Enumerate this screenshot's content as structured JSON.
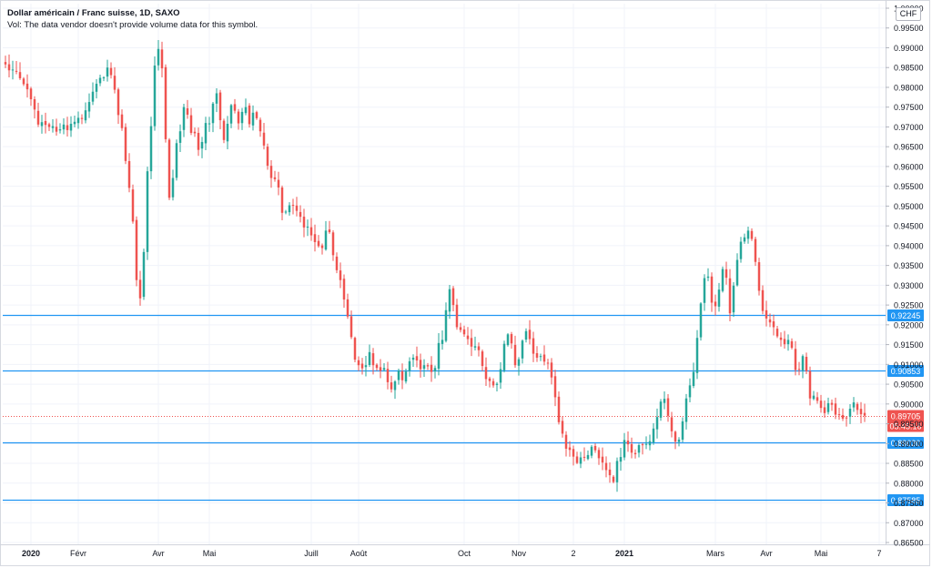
{
  "header": {
    "title": "Dollar américain / Franc suisse, 1D, SAXO",
    "volume_note": "Vol: The data vendor doesn't provide volume data for this symbol.",
    "currency_button": "CHF"
  },
  "colors": {
    "up": "#26a69a",
    "down": "#ef5350",
    "level_line": "#2196f3",
    "price_label": "#ef5350",
    "grid": "#f0f3fa",
    "axis_text": "#131722"
  },
  "last_price": {
    "price": "0.89705",
    "countdown": "05:45:16",
    "value": 0.89705
  },
  "levels": [
    {
      "value": 0.92245,
      "label": "0.92245"
    },
    {
      "value": 0.90853,
      "label": "0.90853"
    },
    {
      "value": 0.8903,
      "label": "0.89030"
    },
    {
      "value": 0.87585,
      "label": "0.87585"
    }
  ],
  "chart_data": {
    "type": "candlestick",
    "title": "Dollar américain / Franc suisse, 1D, SAXO",
    "y_ticks": [
      "1.00000",
      "0.99500",
      "0.99000",
      "0.98500",
      "0.98000",
      "0.97500",
      "0.97000",
      "0.96500",
      "0.96000",
      "0.95500",
      "0.95000",
      "0.94500",
      "0.94000",
      "0.93500",
      "0.93000",
      "0.92500",
      "0.92000",
      "0.91500",
      "0.91000",
      "0.90500",
      "0.90000",
      "0.89500",
      "0.89000",
      "0.88500",
      "0.88000",
      "0.87500",
      "0.87000",
      "0.86500"
    ],
    "ylim": [
      0.865,
      1.0
    ],
    "x_ticks": [
      {
        "label": "2020",
        "bold": true,
        "index": 7
      },
      {
        "label": "Févr",
        "index": 20
      },
      {
        "label": "Avr",
        "index": 42
      },
      {
        "label": "Mai",
        "index": 56
      },
      {
        "label": "Juill",
        "index": 84
      },
      {
        "label": "Août",
        "index": 97
      },
      {
        "label": "Oct",
        "index": 126
      },
      {
        "label": "Nov",
        "index": 141
      },
      {
        "label": "2",
        "index": 156
      },
      {
        "label": "2021",
        "bold": true,
        "index": 170
      },
      {
        "label": "Mars",
        "index": 195
      },
      {
        "label": "Avr",
        "index": 209
      },
      {
        "label": "Mai",
        "index": 224
      },
      {
        "label": "7",
        "index": 240
      }
    ],
    "closes": [
      0.9858,
      0.9843,
      0.9845,
      0.9841,
      0.9823,
      0.9808,
      0.9795,
      0.977,
      0.9744,
      0.9706,
      0.9712,
      0.9705,
      0.97,
      0.9702,
      0.9688,
      0.9694,
      0.9706,
      0.9692,
      0.9708,
      0.9713,
      0.9723,
      0.972,
      0.9742,
      0.9763,
      0.9789,
      0.9809,
      0.9824,
      0.9825,
      0.985,
      0.9831,
      0.9794,
      0.973,
      0.9697,
      0.9614,
      0.9546,
      0.9461,
      0.9313,
      0.9267,
      0.9384,
      0.9588,
      0.9702,
      0.9855,
      0.9897,
      0.9848,
      0.9669,
      0.9521,
      0.9571,
      0.9659,
      0.9689,
      0.975,
      0.9731,
      0.9685,
      0.9684,
      0.9642,
      0.9662,
      0.971,
      0.9709,
      0.9759,
      0.9785,
      0.9717,
      0.9667,
      0.9708,
      0.9755,
      0.9741,
      0.9709,
      0.9738,
      0.975,
      0.9707,
      0.9736,
      0.9722,
      0.9689,
      0.9653,
      0.9602,
      0.9571,
      0.9568,
      0.9547,
      0.9483,
      0.9486,
      0.9502,
      0.9501,
      0.9488,
      0.9473,
      0.9446,
      0.9448,
      0.9426,
      0.9409,
      0.9399,
      0.9394,
      0.9438,
      0.9434,
      0.9376,
      0.9338,
      0.9313,
      0.9264,
      0.9221,
      0.9169,
      0.9112,
      0.9098,
      0.909,
      0.9098,
      0.9131,
      0.9098,
      0.9091,
      0.9084,
      0.9091,
      0.9055,
      0.9037,
      0.9057,
      0.9084,
      0.906,
      0.9082,
      0.9108,
      0.9117,
      0.911,
      0.9088,
      0.9098,
      0.9095,
      0.9081,
      0.9091,
      0.9154,
      0.9162,
      0.9237,
      0.929,
      0.925,
      0.9194,
      0.9187,
      0.9176,
      0.9164,
      0.9145,
      0.9146,
      0.9136,
      0.9096,
      0.9063,
      0.9058,
      0.9047,
      0.9051,
      0.9088,
      0.9152,
      0.9176,
      0.9153,
      0.9098,
      0.9113,
      0.916,
      0.9184,
      0.9164,
      0.9127,
      0.9117,
      0.9121,
      0.9107,
      0.9103,
      0.9067,
      0.9017,
      0.8954,
      0.8925,
      0.8887,
      0.8884,
      0.8867,
      0.8851,
      0.8865,
      0.8865,
      0.8871,
      0.8892,
      0.8883,
      0.8863,
      0.8852,
      0.8833,
      0.882,
      0.8803,
      0.8856,
      0.8866,
      0.8909,
      0.8898,
      0.8877,
      0.8873,
      0.8896,
      0.8896,
      0.8899,
      0.8906,
      0.8938,
      0.8967,
      0.9006,
      0.9013,
      0.897,
      0.8931,
      0.8905,
      0.891,
      0.8956,
      0.9014,
      0.9047,
      0.9081,
      0.9167,
      0.9254,
      0.9318,
      0.9322,
      0.9256,
      0.9247,
      0.9289,
      0.9341,
      0.9319,
      0.9229,
      0.9299,
      0.9364,
      0.941,
      0.9421,
      0.9438,
      0.9417,
      0.9359,
      0.9286,
      0.9235,
      0.9216,
      0.9206,
      0.9194,
      0.9171,
      0.9162,
      0.9151,
      0.9162,
      0.9142,
      0.9086,
      0.9087,
      0.9121,
      0.9083,
      0.9014,
      0.9021,
      0.9008,
      0.899,
      0.8977,
      0.9002,
      0.8998,
      0.8973,
      0.8972,
      0.8963,
      0.8965,
      0.8988,
      0.9004,
      0.8985,
      0.8974,
      0.89705
    ]
  }
}
